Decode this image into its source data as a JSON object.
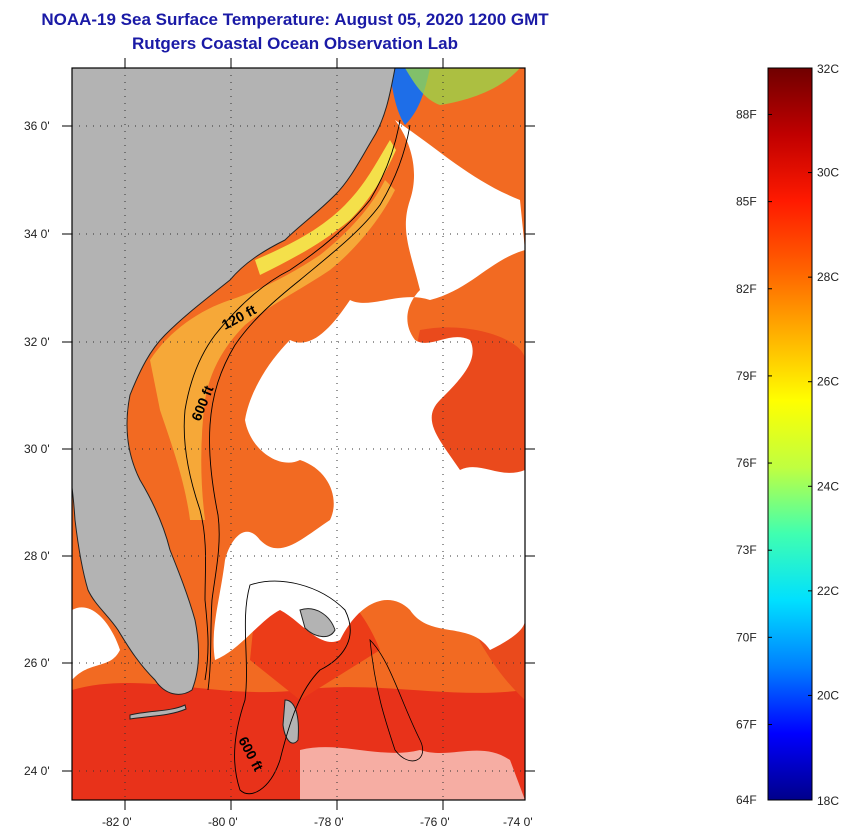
{
  "title": {
    "line1": "NOAA-19 Sea Surface Temperature:  August 05, 2020 1200 GMT",
    "line2": "Rutgers Coastal Ocean Observation Lab"
  },
  "map": {
    "lat_ticks": [
      "36 0'",
      "34 0'",
      "32 0'",
      "30 0'",
      "28 0'",
      "26 0'",
      "24 0'"
    ],
    "lon_ticks": [
      "-82 0'",
      "-80 0'",
      "-78 0'",
      "-76 0'",
      "-74 0'"
    ],
    "contour_labels": {
      "shelf_120": "120 ft",
      "shelf_600": "600 ft",
      "south_600": "600 ft"
    }
  },
  "colorbar": {
    "celsius_top": "32C",
    "celsius_bottom": "18C",
    "celsius_ticks": [
      "30C",
      "28C",
      "26C",
      "24C",
      "22C",
      "20C"
    ],
    "fahrenheit_ticks": [
      "88F",
      "85F",
      "82F",
      "79F",
      "76F",
      "73F",
      "70F",
      "67F",
      "64F"
    ],
    "colors": [
      "#00008a",
      "#0000ff",
      "#0080ff",
      "#00e0ff",
      "#40ffb0",
      "#c0ff40",
      "#ffff00",
      "#ffb000",
      "#ff6000",
      "#ff1a00",
      "#c00000",
      "#700000"
    ]
  },
  "palette": {
    "land": "#b3b3b3",
    "cloud": "#ffffff",
    "warm": "#f46b20",
    "hot": "#ee2a12",
    "shelf": "#f6a838",
    "cool": "#f8e43a"
  }
}
